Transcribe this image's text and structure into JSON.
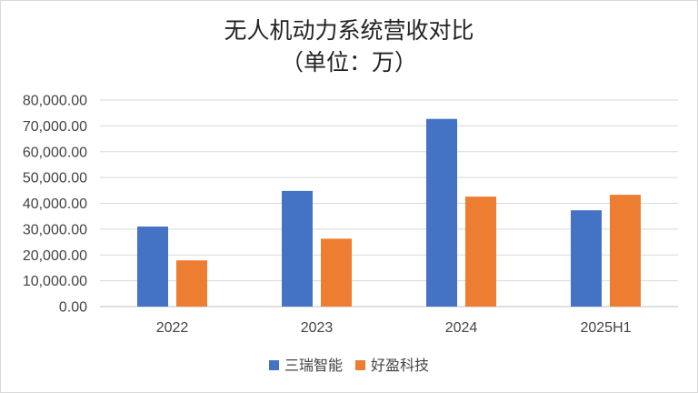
{
  "chart_data": {
    "type": "bar",
    "title": "无人机动力系统营收对比",
    "subtitle": "（单位：万）",
    "categories": [
      "2022",
      "2023",
      "2024",
      "2025H1"
    ],
    "series": [
      {
        "name": "三瑞智能",
        "color": "#4472C4",
        "values": [
          31000,
          44800,
          72700,
          37300
        ]
      },
      {
        "name": "好盈科技",
        "color": "#ED7D31",
        "values": [
          17900,
          26300,
          42600,
          43300
        ]
      }
    ],
    "yticks": [
      "0.00",
      "10,000.00",
      "20,000.00",
      "30,000.00",
      "40,000.00",
      "50,000.00",
      "60,000.00",
      "70,000.00",
      "80,000.00"
    ],
    "ylim": [
      0,
      80000
    ],
    "grid": true,
    "legend": "bottom"
  }
}
